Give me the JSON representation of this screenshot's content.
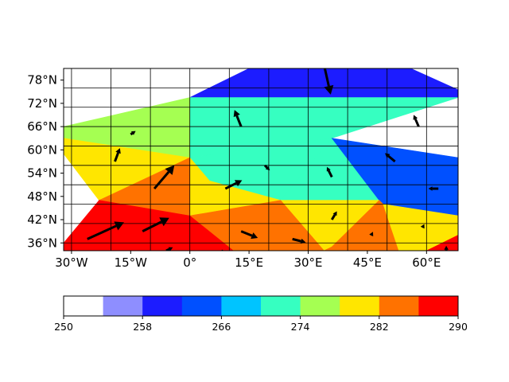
{
  "chart_data": [
    {
      "type": "contourf-map",
      "title": "",
      "xlim": [
        -32,
        68
      ],
      "ylim": [
        34,
        81
      ],
      "grid": true,
      "x_ticks": [
        -30,
        -15,
        0,
        15,
        30,
        45,
        60
      ],
      "x_tick_labels": [
        "30°W",
        "15°W",
        "0°",
        "15°E",
        "30°E",
        "45°E",
        "60°E"
      ],
      "y_ticks": [
        36,
        42,
        48,
        54,
        60,
        66,
        72,
        78
      ],
      "y_tick_labels": [
        "36°N",
        "42°N",
        "48°N",
        "54°N",
        "60°N",
        "66°N",
        "72°N",
        "78°N"
      ],
      "field_regions": [
        {
          "level": 259,
          "polygon": [
            [
              0,
              73.5
            ],
            [
              15,
              81
            ],
            [
              56,
              81
            ],
            [
              68,
              75.5
            ],
            [
              68,
              73.5
            ]
          ]
        },
        {
          "level": 270,
          "polygon": [
            [
              0,
              73.5
            ],
            [
              68,
              73.5
            ],
            [
              36,
              63
            ],
            [
              0,
              58
            ]
          ]
        },
        {
          "level": 277,
          "polygon": [
            [
              -32,
              63
            ],
            [
              -32,
              66
            ],
            [
              0,
              73.5
            ],
            [
              0,
              58
            ]
          ]
        },
        {
          "level": 281,
          "polygon": [
            [
              -32,
              63
            ],
            [
              -32,
              59
            ],
            [
              -23,
              47
            ],
            [
              0,
              58
            ]
          ]
        },
        {
          "level": 273,
          "polygon": [
            [
              0,
              58
            ],
            [
              36,
              63
            ],
            [
              23,
              47
            ],
            [
              5,
              52
            ]
          ]
        },
        {
          "level": 271,
          "polygon": [
            [
              36,
              63
            ],
            [
              23,
              47
            ],
            [
              48,
              47
            ]
          ]
        },
        {
          "level": 264,
          "polygon": [
            [
              36,
              63
            ],
            [
              68,
              58
            ],
            [
              68,
              43
            ],
            [
              49,
              46
            ],
            [
              48,
              47
            ]
          ]
        },
        {
          "level": 281,
          "polygon": [
            [
              23,
              47
            ],
            [
              48,
              47
            ],
            [
              36,
              35
            ],
            [
              34,
              34
            ]
          ]
        },
        {
          "level": 281,
          "polygon": [
            [
              0,
              58
            ],
            [
              5,
              52
            ],
            [
              23,
              47
            ],
            [
              0,
              43
            ]
          ]
        },
        {
          "level": 284,
          "polygon": [
            [
              -23,
              47
            ],
            [
              0,
              58
            ],
            [
              0,
              43
            ]
          ]
        },
        {
          "level": 284,
          "polygon": [
            [
              0,
              43
            ],
            [
              23,
              47
            ],
            [
              34,
              34
            ],
            [
              11,
              34
            ]
          ]
        },
        {
          "level": 288,
          "polygon": [
            [
              -32,
              34
            ],
            [
              -32,
              36
            ],
            [
              -23,
              47
            ],
            [
              0,
              43
            ],
            [
              11,
              34
            ]
          ]
        },
        {
          "level": 284,
          "polygon": [
            [
              34,
              34
            ],
            [
              36,
              35
            ],
            [
              48,
              47
            ],
            [
              49,
              46
            ],
            [
              53,
              34
            ]
          ]
        },
        {
          "level": 281,
          "polygon": [
            [
              49,
              46
            ],
            [
              68,
              43
            ],
            [
              68,
              38
            ],
            [
              60,
              34
            ],
            [
              53,
              34
            ]
          ]
        },
        {
          "level": 288,
          "polygon": [
            [
              60,
              34
            ],
            [
              68,
              38
            ],
            [
              68,
              34
            ]
          ]
        }
      ],
      "wind_vectors": [
        {
          "lon": 34,
          "lat": 82,
          "u": 2,
          "v": -9
        },
        {
          "lon": 13,
          "lat": 66,
          "u": -2,
          "v": 5
        },
        {
          "lon": 58,
          "lat": 66,
          "u": -1.5,
          "v": 3.5
        },
        {
          "lon": -15,
          "lat": 64,
          "u": 1.5,
          "v": 1
        },
        {
          "lon": -19,
          "lat": 57,
          "u": 1.5,
          "v": 4
        },
        {
          "lon": -9,
          "lat": 50,
          "u": 6,
          "v": 7
        },
        {
          "lon": 19,
          "lat": 56,
          "u": 1.5,
          "v": -1.5
        },
        {
          "lon": 36,
          "lat": 53,
          "u": -1.5,
          "v": 3
        },
        {
          "lon": 52,
          "lat": 57,
          "u": -3,
          "v": 2.5
        },
        {
          "lon": 9,
          "lat": 50,
          "u": 5,
          "v": 2.5
        },
        {
          "lon": 63,
          "lat": 50,
          "u": -3,
          "v": 0
        },
        {
          "lon": 36,
          "lat": 42,
          "u": 1.5,
          "v": 2.5
        },
        {
          "lon": -26,
          "lat": 37,
          "u": 11,
          "v": 5
        },
        {
          "lon": -12,
          "lat": 39,
          "u": 8,
          "v": 4
        },
        {
          "lon": 13,
          "lat": 39,
          "u": 5,
          "v": -2
        },
        {
          "lon": 26,
          "lat": 37,
          "u": 4,
          "v": -1
        },
        {
          "lon": 46,
          "lat": 38,
          "u": 0.5,
          "v": 1
        },
        {
          "lon": 59,
          "lat": 40,
          "u": 0.5,
          "v": 1
        },
        {
          "lon": -6,
          "lat": 34,
          "u": 2,
          "v": 1
        },
        {
          "lon": 8,
          "lat": 34,
          "u": 2,
          "v": -1
        },
        {
          "lon": 65,
          "lat": 34,
          "u": 0,
          "v": 1.5
        }
      ]
    },
    {
      "type": "colorbar",
      "levels": [
        250,
        254,
        258,
        262,
        266,
        270,
        274,
        278,
        282,
        286,
        290
      ],
      "colors": [
        "#ffffff",
        "#8e8eff",
        "#1c1cff",
        "#0050ff",
        "#00c4ff",
        "#36ffc1",
        "#a5ff52",
        "#ffe600",
        "#ff7200",
        "#ff0000"
      ],
      "tick_values": [
        250,
        258,
        266,
        274,
        282,
        290
      ],
      "tick_labels": [
        "250",
        "258",
        "266",
        "274",
        "282",
        "290"
      ]
    }
  ]
}
